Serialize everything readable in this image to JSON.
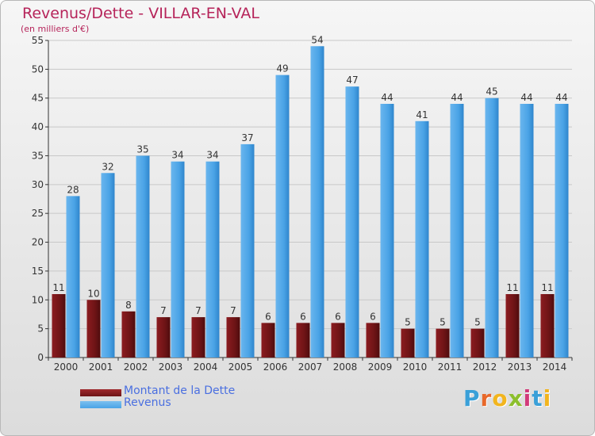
{
  "header": {
    "title": "Revenus/Dette - VILLAR-EN-VAL",
    "subtitle": "(en milliers d'€)"
  },
  "colors": {
    "dette": "#6e1416",
    "revenus": "#4aa3e6",
    "title": "#b6245a",
    "legend_text": "#4a6fe0",
    "axis": "#333333",
    "grid": "#c8c8c8"
  },
  "chart_data": {
    "type": "bar",
    "title": "Revenus/Dette - VILLAR-EN-VAL",
    "subtitle": "(en milliers d'€)",
    "categories": [
      "2000",
      "2001",
      "2002",
      "2003",
      "2004",
      "2005",
      "2006",
      "2007",
      "2008",
      "2009",
      "2010",
      "2011",
      "2012",
      "2013",
      "2014"
    ],
    "series": [
      {
        "name": "Montant de la Dette",
        "values": [
          11,
          10,
          8,
          7,
          7,
          7,
          6,
          6,
          6,
          6,
          5,
          5,
          5,
          11,
          11
        ],
        "color": "#6e1416"
      },
      {
        "name": "Revenus",
        "values": [
          28,
          32,
          35,
          34,
          34,
          37,
          49,
          54,
          47,
          44,
          41,
          44,
          45,
          44,
          44
        ],
        "color": "#4aa3e6"
      }
    ],
    "ylim": [
      0,
      55
    ],
    "yticks": [
      0,
      5,
      10,
      15,
      20,
      25,
      30,
      35,
      40,
      45,
      50,
      55
    ],
    "grid": true,
    "legend": "bottom-left",
    "data_labels": true
  },
  "logo": {
    "letters": [
      "P",
      "r",
      "o",
      "x",
      "i",
      "t",
      "i"
    ],
    "colors": [
      "#3aa0d8",
      "#e8682a",
      "#f2b51e",
      "#8cbf2c",
      "#d23a7a",
      "#3aa0d8",
      "#f2b51e"
    ]
  }
}
